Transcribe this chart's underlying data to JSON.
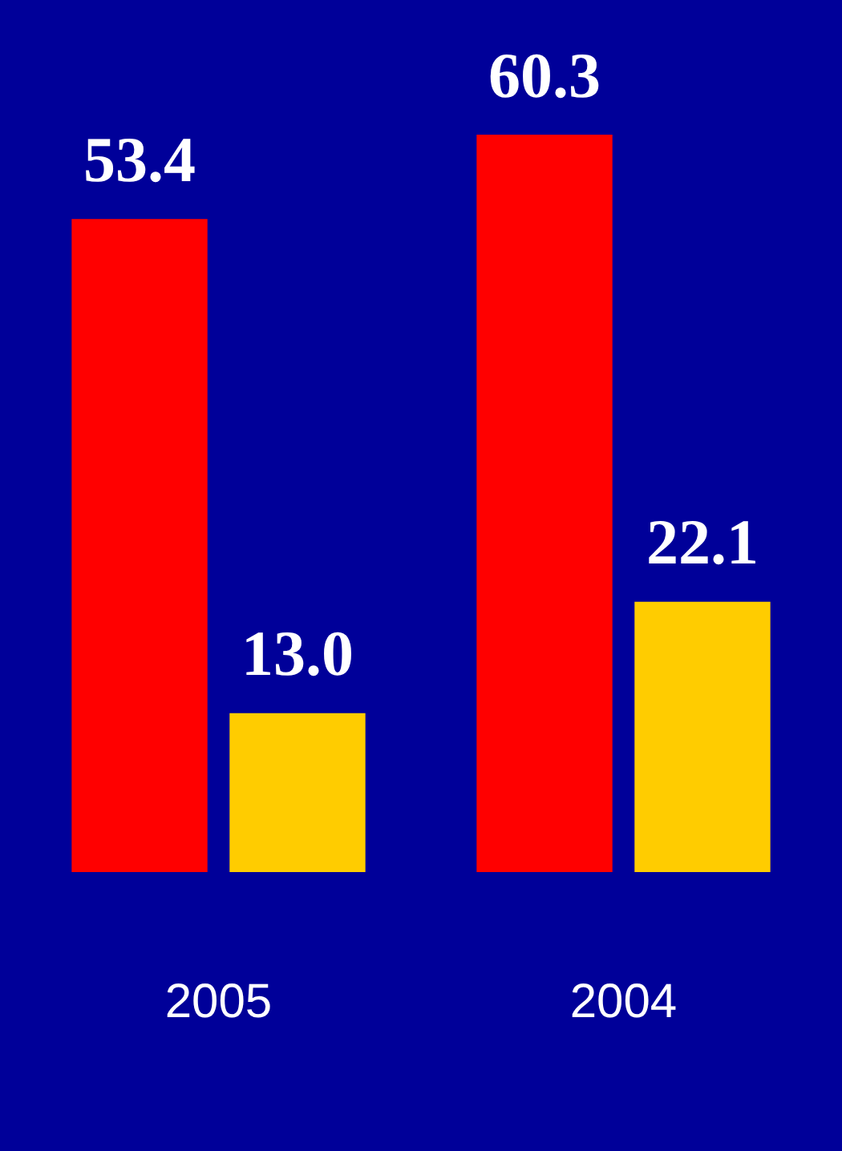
{
  "chart_data": {
    "type": "bar",
    "categories": [
      "2005",
      "2004"
    ],
    "series": [
      {
        "color": "#ff0000",
        "values": [
          53.4,
          60.3
        ],
        "value_labels": [
          "53.4",
          "60.3"
        ]
      },
      {
        "color": "#ffcc00",
        "values": [
          13.0,
          22.1
        ],
        "value_labels": [
          "13.0",
          "22.1"
        ]
      }
    ],
    "grid": false,
    "legend": false,
    "tick_labels": "x"
  }
}
